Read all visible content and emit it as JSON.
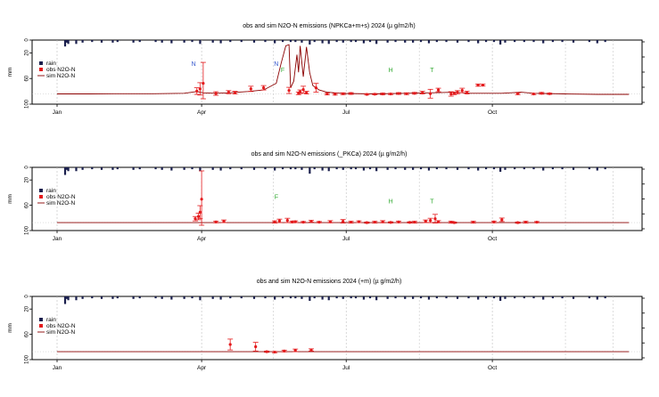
{
  "colors": {
    "rain": "#1a1f4d",
    "obs": "#e41a1c",
    "sim": "#8b0000",
    "mark_blue": "#3355cc",
    "mark_green": "#33aa33",
    "grid": "#bdbdbd",
    "axis": "#000000"
  },
  "chart_data": [
    {
      "type": "line",
      "title": "obs and sim N2O-N emissions (NPKCa+m+s) 2024 (µ g/m2/h)",
      "ylabel": "mm",
      "rain_yticks": [
        "0",
        "20",
        "60",
        "100"
      ],
      "month_ticks": [
        "Jan",
        "Apr",
        "Jul",
        "Oct"
      ],
      "legend": [
        "rain",
        "obs N2O-N",
        "sim N2O-N"
      ],
      "xlim": [
        0,
        366
      ],
      "flux_ylim": [
        0,
        250
      ],
      "rain_ylim": [
        0,
        100
      ],
      "rain": [
        [
          5,
          10
        ],
        [
          6,
          4
        ],
        [
          7,
          6
        ],
        [
          12,
          6
        ],
        [
          16,
          4
        ],
        [
          22,
          3
        ],
        [
          28,
          4
        ],
        [
          35,
          4
        ],
        [
          38,
          3
        ],
        [
          48,
          4
        ],
        [
          52,
          3
        ],
        [
          62,
          3
        ],
        [
          66,
          4
        ],
        [
          72,
          5
        ],
        [
          80,
          4
        ],
        [
          85,
          3
        ],
        [
          90,
          6
        ],
        [
          98,
          4
        ],
        [
          103,
          5
        ],
        [
          109,
          3
        ],
        [
          116,
          3
        ],
        [
          124,
          4
        ],
        [
          131,
          3
        ],
        [
          137,
          5
        ],
        [
          142,
          3
        ],
        [
          147,
          3
        ],
        [
          150,
          3
        ],
        [
          154,
          4
        ],
        [
          159,
          7
        ],
        [
          162,
          3
        ],
        [
          167,
          5
        ],
        [
          171,
          6
        ],
        [
          176,
          3
        ],
        [
          180,
          4
        ],
        [
          185,
          3
        ],
        [
          188,
          3
        ],
        [
          193,
          5
        ],
        [
          197,
          3
        ],
        [
          201,
          6
        ],
        [
          208,
          4
        ],
        [
          213,
          3
        ],
        [
          219,
          4
        ],
        [
          224,
          4
        ],
        [
          229,
          3
        ],
        [
          234,
          5
        ],
        [
          239,
          3
        ],
        [
          245,
          3
        ],
        [
          252,
          4
        ],
        [
          259,
          3
        ],
        [
          265,
          5
        ],
        [
          270,
          3
        ],
        [
          275,
          3
        ],
        [
          279,
          7
        ],
        [
          282,
          4
        ],
        [
          288,
          3
        ],
        [
          294,
          3
        ],
        [
          300,
          3
        ],
        [
          306,
          5
        ],
        [
          312,
          3
        ],
        [
          318,
          3
        ],
        [
          325,
          4
        ],
        [
          335,
          3
        ],
        [
          340,
          5
        ],
        [
          345,
          3
        ]
      ],
      "sim": [
        [
          0,
          22
        ],
        [
          20,
          22
        ],
        [
          40,
          23
        ],
        [
          60,
          23
        ],
        [
          80,
          25
        ],
        [
          88,
          33
        ],
        [
          92,
          27
        ],
        [
          100,
          25
        ],
        [
          110,
          28
        ],
        [
          120,
          33
        ],
        [
          130,
          40
        ],
        [
          138,
          70
        ],
        [
          141,
          160
        ],
        [
          144,
          240
        ],
        [
          146,
          245
        ],
        [
          147,
          50
        ],
        [
          149,
          80
        ],
        [
          151,
          200
        ],
        [
          152,
          120
        ],
        [
          153,
          240
        ],
        [
          155,
          100
        ],
        [
          157,
          235
        ],
        [
          159,
          120
        ],
        [
          161,
          60
        ],
        [
          165,
          40
        ],
        [
          170,
          30
        ],
        [
          180,
          24
        ],
        [
          200,
          22
        ],
        [
          220,
          25
        ],
        [
          240,
          28
        ],
        [
          250,
          30
        ],
        [
          260,
          25
        ],
        [
          280,
          25
        ],
        [
          292,
          30
        ],
        [
          300,
          25
        ],
        [
          320,
          22
        ],
        [
          340,
          20
        ],
        [
          360,
          20
        ]
      ],
      "obs": [
        [
          88,
          35,
          15
        ],
        [
          90,
          45,
          28
        ],
        [
          92,
          70,
          95
        ],
        [
          100,
          24,
          8
        ],
        [
          108,
          30,
          7
        ],
        [
          112,
          28,
          6
        ],
        [
          122,
          45,
          12
        ],
        [
          130,
          50,
          10
        ],
        [
          146,
          38,
          14
        ],
        [
          152,
          25,
          6
        ],
        [
          153,
          32,
          8
        ],
        [
          155,
          42,
          15
        ],
        [
          157,
          28,
          6
        ],
        [
          163,
          50,
          20
        ],
        [
          170,
          22,
          4
        ],
        [
          175,
          21,
          4
        ],
        [
          180,
          23,
          4
        ],
        [
          185,
          24,
          4
        ],
        [
          195,
          20,
          3
        ],
        [
          200,
          21,
          3
        ],
        [
          205,
          22,
          4
        ],
        [
          210,
          22,
          3
        ],
        [
          215,
          24,
          4
        ],
        [
          220,
          23,
          4
        ],
        [
          225,
          25,
          4
        ],
        [
          230,
          28,
          6
        ],
        [
          235,
          23,
          20
        ],
        [
          240,
          40,
          8
        ],
        [
          248,
          22,
          10
        ],
        [
          250,
          24,
          5
        ],
        [
          252,
          30,
          7
        ],
        [
          255,
          38,
          10
        ],
        [
          258,
          28,
          6
        ],
        [
          265,
          62,
          5
        ],
        [
          268,
          62,
          4
        ],
        [
          290,
          23,
          4
        ],
        [
          300,
          22,
          3
        ],
        [
          305,
          25,
          4
        ],
        [
          310,
          23,
          3
        ]
      ],
      "markers": [
        [
          86,
          "N",
          150,
          "blue"
        ],
        [
          138,
          "N",
          150,
          "blue"
        ],
        [
          142,
          "F",
          120,
          "green"
        ],
        [
          210,
          "H",
          120,
          "green"
        ],
        [
          236,
          "T",
          120,
          "green"
        ]
      ]
    },
    {
      "type": "line",
      "title": "obs and sim N2O-N emissions (_PKCa) 2024 (µ g/m2/h)",
      "ylabel": "mm",
      "rain_yticks": [
        "0",
        "20",
        "60",
        "100"
      ],
      "month_ticks": [
        "Jan",
        "Apr",
        "Jul",
        "Oct"
      ],
      "legend": [
        "rain",
        "obs N2O-N",
        "sim N2O-N"
      ],
      "xlim": [
        0,
        366
      ],
      "flux_ylim": [
        0,
        250
      ],
      "rain_ylim": [
        0,
        100
      ],
      "rain": [
        [
          5,
          12
        ],
        [
          6,
          4
        ],
        [
          7,
          6
        ],
        [
          12,
          6
        ],
        [
          16,
          4
        ],
        [
          22,
          3
        ],
        [
          28,
          4
        ],
        [
          35,
          4
        ],
        [
          38,
          3
        ],
        [
          48,
          4
        ],
        [
          52,
          3
        ],
        [
          62,
          3
        ],
        [
          66,
          4
        ],
        [
          72,
          5
        ],
        [
          80,
          4
        ],
        [
          85,
          3
        ],
        [
          90,
          6
        ],
        [
          98,
          4
        ],
        [
          103,
          5
        ],
        [
          109,
          3
        ],
        [
          116,
          3
        ],
        [
          124,
          4
        ],
        [
          131,
          3
        ],
        [
          137,
          5
        ],
        [
          142,
          3
        ],
        [
          147,
          3
        ],
        [
          150,
          3
        ],
        [
          154,
          4
        ],
        [
          159,
          10
        ],
        [
          162,
          3
        ],
        [
          167,
          5
        ],
        [
          171,
          6
        ],
        [
          176,
          3
        ],
        [
          180,
          4
        ],
        [
          185,
          3
        ],
        [
          188,
          3
        ],
        [
          193,
          5
        ],
        [
          197,
          3
        ],
        [
          201,
          6
        ],
        [
          208,
          4
        ],
        [
          213,
          3
        ],
        [
          219,
          4
        ],
        [
          224,
          4
        ],
        [
          229,
          3
        ],
        [
          234,
          5
        ],
        [
          239,
          3
        ],
        [
          245,
          3
        ],
        [
          252,
          4
        ],
        [
          259,
          3
        ],
        [
          265,
          5
        ],
        [
          270,
          3
        ],
        [
          275,
          3
        ],
        [
          279,
          7
        ],
        [
          282,
          4
        ],
        [
          288,
          3
        ],
        [
          294,
          3
        ],
        [
          300,
          3
        ],
        [
          306,
          5
        ],
        [
          312,
          3
        ],
        [
          318,
          3
        ],
        [
          325,
          4
        ],
        [
          335,
          3
        ],
        [
          340,
          5
        ],
        [
          345,
          3
        ]
      ],
      "sim": [
        [
          0,
          12
        ],
        [
          60,
          12
        ],
        [
          120,
          12
        ],
        [
          180,
          12
        ],
        [
          240,
          12
        ],
        [
          300,
          12
        ],
        [
          360,
          12
        ]
      ],
      "obs": [
        [
          87,
          30,
          10
        ],
        [
          89,
          40,
          15
        ],
        [
          90,
          60,
          30
        ],
        [
          91,
          120,
          140
        ],
        [
          100,
          15,
          4
        ],
        [
          105,
          18,
          6
        ],
        [
          137,
          15,
          5
        ],
        [
          140,
          20,
          8
        ],
        [
          145,
          22,
          10
        ],
        [
          148,
          15,
          4
        ],
        [
          150,
          16,
          4
        ],
        [
          155,
          14,
          3
        ],
        [
          160,
          18,
          4
        ],
        [
          165,
          14,
          3
        ],
        [
          172,
          16,
          5
        ],
        [
          180,
          18,
          8
        ],
        [
          185,
          14,
          4
        ],
        [
          190,
          16,
          4
        ],
        [
          195,
          12,
          3
        ],
        [
          200,
          14,
          4
        ],
        [
          205,
          16,
          5
        ],
        [
          210,
          13,
          3
        ],
        [
          215,
          15,
          4
        ],
        [
          222,
          13,
          3
        ],
        [
          225,
          14,
          4
        ],
        [
          232,
          18,
          6
        ],
        [
          235,
          22,
          10
        ],
        [
          238,
          30,
          20
        ],
        [
          240,
          16,
          5
        ],
        [
          248,
          14,
          4
        ],
        [
          250,
          12,
          3
        ],
        [
          262,
          14,
          4
        ],
        [
          275,
          15,
          4
        ],
        [
          280,
          25,
          8
        ],
        [
          290,
          12,
          3
        ],
        [
          295,
          14,
          4
        ],
        [
          302,
          14,
          3
        ]
      ],
      "markers": [
        [
          138,
          "F",
          120,
          "green"
        ],
        [
          210,
          "H",
          100,
          "green"
        ],
        [
          236,
          "T",
          100,
          "green"
        ]
      ]
    },
    {
      "type": "line",
      "title": "obs and sim N2O-N emissions 2024 (+m) (µ g/m2/h)",
      "ylabel": "mm",
      "rain_yticks": [
        "0",
        "20",
        "60",
        "100"
      ],
      "month_ticks": [
        "Jan",
        "Apr",
        "Jul",
        "Oct"
      ],
      "legend": [
        "rain",
        "obs N2O-N",
        "sim N2O-N"
      ],
      "xlim": [
        0,
        366
      ],
      "flux_ylim": [
        0,
        250
      ],
      "rain_ylim": [
        0,
        100
      ],
      "rain": [
        [
          5,
          12
        ],
        [
          6,
          4
        ],
        [
          7,
          6
        ],
        [
          12,
          6
        ],
        [
          16,
          4
        ],
        [
          22,
          3
        ],
        [
          28,
          4
        ],
        [
          35,
          4
        ],
        [
          38,
          3
        ],
        [
          48,
          4
        ],
        [
          52,
          3
        ],
        [
          62,
          3
        ],
        [
          66,
          4
        ],
        [
          72,
          5
        ],
        [
          80,
          4
        ],
        [
          85,
          3
        ],
        [
          90,
          6
        ],
        [
          98,
          4
        ],
        [
          103,
          5
        ],
        [
          109,
          3
        ],
        [
          116,
          3
        ],
        [
          124,
          4
        ],
        [
          131,
          3
        ],
        [
          137,
          5
        ],
        [
          142,
          3
        ],
        [
          147,
          3
        ],
        [
          150,
          3
        ],
        [
          154,
          4
        ],
        [
          159,
          7
        ],
        [
          162,
          3
        ],
        [
          167,
          5
        ],
        [
          171,
          6
        ],
        [
          176,
          3
        ],
        [
          180,
          4
        ],
        [
          185,
          3
        ],
        [
          188,
          3
        ],
        [
          193,
          5
        ],
        [
          197,
          3
        ],
        [
          201,
          6
        ],
        [
          208,
          4
        ],
        [
          213,
          3
        ],
        [
          219,
          4
        ],
        [
          224,
          4
        ],
        [
          229,
          3
        ],
        [
          234,
          5
        ],
        [
          239,
          3
        ],
        [
          245,
          3
        ],
        [
          252,
          4
        ],
        [
          259,
          3
        ],
        [
          265,
          5
        ],
        [
          270,
          3
        ],
        [
          275,
          3
        ],
        [
          279,
          7
        ],
        [
          282,
          4
        ],
        [
          288,
          3
        ],
        [
          294,
          3
        ],
        [
          300,
          3
        ],
        [
          306,
          5
        ],
        [
          312,
          3
        ],
        [
          318,
          3
        ],
        [
          325,
          4
        ],
        [
          335,
          3
        ],
        [
          340,
          5
        ],
        [
          345,
          3
        ]
      ],
      "sim": [
        [
          0,
          12
        ],
        [
          60,
          12
        ],
        [
          120,
          12
        ],
        [
          180,
          12
        ],
        [
          240,
          12
        ],
        [
          300,
          12
        ],
        [
          360,
          12
        ]
      ],
      "obs": [
        [
          109,
          45,
          25
        ],
        [
          125,
          35,
          20
        ],
        [
          132,
          12,
          3
        ],
        [
          137,
          10,
          3
        ],
        [
          143,
          15,
          4
        ],
        [
          150,
          18,
          6
        ],
        [
          160,
          20,
          5
        ]
      ],
      "markers": []
    }
  ]
}
